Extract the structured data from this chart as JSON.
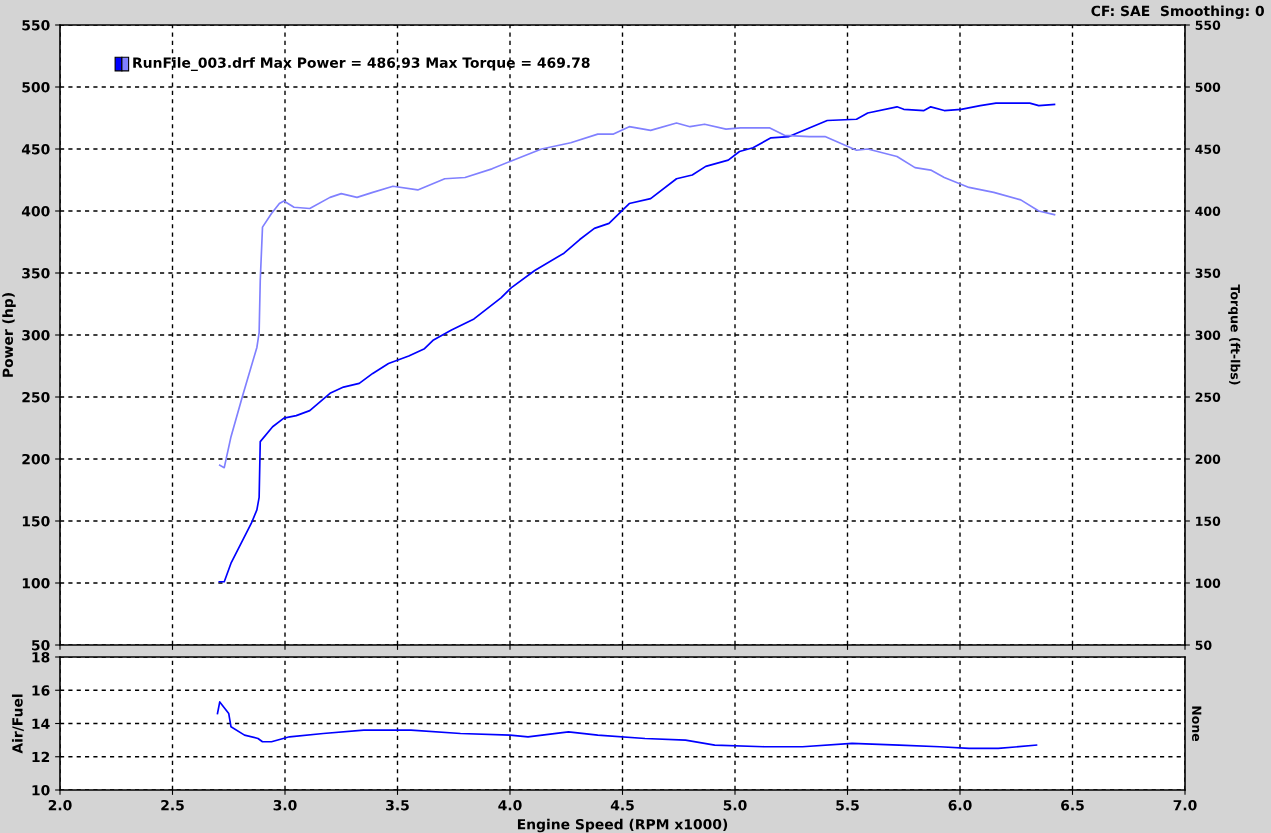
{
  "chart_data": [
    {
      "type": "line",
      "ylabel": "Power (hp)",
      "y2label": "Torque (ft-lbs)",
      "annotations": [
        "RunFile_003.drf Max Power = 486.93 Max Torque = 469.78",
        "CF: SAE  Smoothing: 0"
      ],
      "xlim": [
        2,
        7
      ],
      "xticks": [
        {
          "value": 2,
          "label": null
        },
        {
          "value": 2.5,
          "label": null
        },
        {
          "value": 3,
          "label": null
        },
        {
          "value": 3.5,
          "label": null
        },
        {
          "value": 4,
          "label": null
        },
        {
          "value": 4.5,
          "label": null
        },
        {
          "value": 5,
          "label": null
        },
        {
          "value": 5.5,
          "label": null
        },
        {
          "value": 6,
          "label": null
        },
        {
          "value": 6.5,
          "label": null
        },
        {
          "value": 7,
          "label": null
        }
      ],
      "ylim": [
        50,
        550
      ],
      "yticks": [
        50,
        100,
        150,
        200,
        250,
        300,
        350,
        400,
        450,
        500,
        550
      ],
      "y2lim": [
        50,
        550
      ],
      "y2ticks": [
        50,
        100,
        150,
        200,
        250,
        300,
        350,
        400,
        450,
        500,
        550
      ],
      "grid": true,
      "tick_labels": "y",
      "series": [
        {
          "color": "#0000ff",
          "x": [
            2.708,
            2.73,
            2.76,
            2.85,
            2.875,
            2.885,
            2.89,
            2.945,
            2.995,
            3.05,
            3.11,
            3.2,
            3.26,
            3.33,
            3.39,
            3.46,
            3.55,
            3.62,
            3.66,
            3.74,
            3.84,
            3.96,
            4.005,
            4.11,
            4.24,
            4.31,
            4.375,
            4.44,
            4.53,
            4.625,
            4.74,
            4.81,
            4.87,
            4.97,
            5.02,
            5.08,
            5.16,
            5.24,
            5.33,
            5.41,
            5.54,
            5.59,
            5.72,
            5.75,
            5.84,
            5.87,
            5.93,
            6.005,
            6.09,
            6.16,
            6.25,
            6.31,
            6.35,
            6.42
          ],
          "values": [
            101,
            101,
            116,
            148,
            159,
            169,
            214,
            226,
            233,
            235,
            239,
            253,
            258,
            261,
            269,
            277,
            283,
            289,
            296,
            304,
            313,
            330,
            338,
            352,
            366,
            377,
            386,
            390,
            406,
            410,
            426,
            429,
            436,
            441,
            448,
            451,
            459,
            460,
            467,
            473,
            474,
            479,
            484,
            482,
            481,
            484,
            481,
            482,
            485,
            487,
            487,
            487,
            485,
            486
          ]
        },
        {
          "color": "#8080ff",
          "x": [
            2.71,
            2.73,
            2.76,
            2.81,
            2.875,
            2.885,
            2.89,
            2.9,
            2.94,
            2.975,
            2.995,
            3.04,
            3.11,
            3.2,
            3.25,
            3.32,
            3.39,
            3.48,
            3.59,
            3.71,
            3.8,
            3.92,
            4.0,
            4.14,
            4.27,
            4.39,
            4.46,
            4.53,
            4.625,
            4.74,
            4.8,
            4.865,
            4.96,
            5.025,
            5.155,
            5.22,
            5.33,
            5.4,
            5.54,
            5.59,
            5.72,
            5.8,
            5.87,
            5.93,
            6.04,
            6.15,
            6.27,
            6.35,
            6.42
          ],
          "values": [
            195,
            193,
            218,
            250,
            290,
            302,
            344,
            387,
            398,
            406,
            408,
            403,
            402,
            411,
            414,
            411,
            415,
            420,
            417,
            426,
            427,
            434,
            440,
            450,
            455,
            462,
            462,
            468,
            465,
            471,
            468,
            470,
            466,
            467,
            467,
            461,
            460,
            460,
            449,
            450,
            444,
            435,
            433,
            427,
            419,
            415,
            409,
            400,
            397
          ]
        }
      ]
    },
    {
      "type": "line",
      "ylabel": "Air/Fuel",
      "y2label": "None",
      "xlabel": "Engine Speed (RPM x1000)",
      "xlim": [
        2,
        7
      ],
      "xticks": [
        {
          "value": 2,
          "label": "2.0"
        },
        {
          "value": 2.5,
          "label": "2.5"
        },
        {
          "value": 3,
          "label": "3.0"
        },
        {
          "value": 3.5,
          "label": "3.5"
        },
        {
          "value": 4,
          "label": "4.0"
        },
        {
          "value": 4.5,
          "label": "4.5"
        },
        {
          "value": 5,
          "label": "5.0"
        },
        {
          "value": 5.5,
          "label": "5.5"
        },
        {
          "value": 6,
          "label": "6.0"
        },
        {
          "value": 6.5,
          "label": "6.5"
        },
        {
          "value": 7,
          "label": "7.0"
        }
      ],
      "ylim": [
        10,
        18
      ],
      "yticks": [
        10,
        12,
        14,
        16,
        18
      ],
      "grid": true,
      "series": [
        {
          "color": "#0000ff",
          "x": [
            2.7,
            2.71,
            2.75,
            2.76,
            2.82,
            2.88,
            2.9,
            2.94,
            3.02,
            3.17,
            3.35,
            3.56,
            3.78,
            4.0,
            4.08,
            4.26,
            4.39,
            4.6,
            4.78,
            4.91,
            5.13,
            5.3,
            5.52,
            5.73,
            5.91,
            6.04,
            6.17,
            6.34
          ],
          "values": [
            14.6,
            15.3,
            14.6,
            13.8,
            13.3,
            13.1,
            12.9,
            12.9,
            13.2,
            13.4,
            13.6,
            13.6,
            13.4,
            13.3,
            13.2,
            13.5,
            13.3,
            13.1,
            13.0,
            12.7,
            12.6,
            12.6,
            12.8,
            12.7,
            12.6,
            12.5,
            12.5,
            12.7
          ]
        }
      ]
    }
  ]
}
